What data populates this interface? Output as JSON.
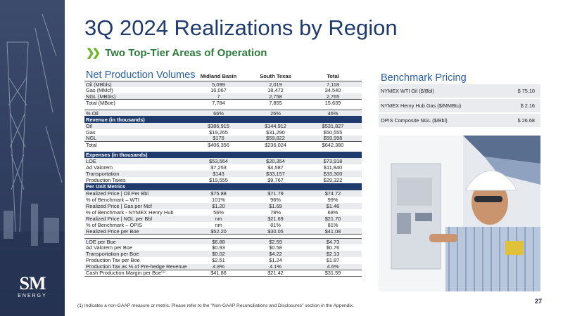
{
  "header": {
    "title": "3Q 2024 Realizations by Region",
    "subtitle": "Two Top-Tier Areas of Operation"
  },
  "logo": {
    "mark": "SM",
    "word": "ENERGY"
  },
  "net_production": {
    "title": "Net Production Volumes",
    "columns": [
      "Midland Basin",
      "South Texas",
      "Total"
    ]
  },
  "rows": {
    "oil_mbbls": [
      "Oil (MBbls)",
      "5,099",
      "2,019",
      "7,118"
    ],
    "gas_mmcf": [
      "Gas (MMcf)",
      "16,067",
      "18,472",
      "34,540"
    ],
    "ngl_mbbls": [
      "NGL (MBbls)",
      "7",
      "2,758",
      "2,765"
    ],
    "total_mboe": [
      "Total (MBoe)",
      "7,784",
      "7,855",
      "15,639"
    ],
    "pct_oil": [
      "% Oil",
      "66%",
      "26%",
      "46%"
    ],
    "revenue_header": "Revenue (in thousands)",
    "rev_oil": [
      "Oil",
      "$386,915",
      "$144,912",
      "$531,827"
    ],
    "rev_gas": [
      "Gas",
      "$19,265",
      "$31,290",
      "$50,555"
    ],
    "rev_ngl": [
      "NGL",
      "$176",
      "$59,822",
      "$59,998"
    ],
    "rev_total": [
      "Total",
      "$406,356",
      "$236,024",
      "$642,380"
    ],
    "expenses_header": "Expenses (in thousands)",
    "loe": [
      "LOE",
      "$53,564",
      "$20,354",
      "$73,918"
    ],
    "ad_valorem": [
      "Ad Valorem",
      "$7,253",
      "$4,587",
      "$11,840"
    ],
    "transportation": [
      "Transportation",
      "$143",
      "$33,157",
      "$33,300"
    ],
    "production_taxes": [
      "Production Taxes",
      "$19,555",
      "$9,767",
      "$29,322"
    ],
    "per_unit_header": "Per Unit Metrics",
    "price_oil": [
      "Realized Price | Oil Per Bbl",
      "$75.88",
      "$71.79",
      "$74.72"
    ],
    "pct_wti": [
      "% of Benchmark – WTI",
      "101%",
      "96%",
      "99%"
    ],
    "price_gas": [
      "Realized Price | Gas per Mcf",
      "$1.20",
      "$1.69",
      "$1.46"
    ],
    "pct_hh": [
      "% of Benchmark - NYMEX Henry Hub",
      "56%",
      "78%",
      "68%"
    ],
    "price_ngl": [
      "Realized Price | NGL per Bbl",
      "nm",
      "$21.69",
      "$21.70"
    ],
    "pct_opis": [
      "% of Benchmark – OPIS",
      "nm",
      "81%",
      "81%"
    ],
    "price_boe": [
      "Realized Price per Boe",
      "$52.20",
      "$30.05",
      "$41.08"
    ],
    "loe_boe": [
      "LOE per Boe",
      "$6.88",
      "$2.59",
      "$4.73"
    ],
    "adval_boe": [
      "Ad Valorem per Boe",
      "$0.93",
      "$0.58",
      "$0.76"
    ],
    "transp_boe": [
      "Transportation per Boe",
      "$0.02",
      "$4.22",
      "$2.13"
    ],
    "prodtax_boe": [
      "Production Tax per Boe",
      "$2.51",
      "$1.24",
      "$1.87"
    ],
    "prodtax_pct": [
      "Production Tax as % of Pre-hedge Revenue",
      "4.8%",
      "4.1%",
      "4.6%"
    ],
    "cash_margin": [
      "Cash Production Margin per Boe",
      "$41.86",
      "$21.42",
      "$31.59"
    ],
    "cash_margin_sup": "(1)"
  },
  "benchmark": {
    "title": "Benchmark Pricing",
    "items": [
      {
        "label": "NYMEX WTI Oil ($/Bbl)",
        "value": "$ 75.10"
      },
      {
        "label": "NYMEX Henry Hub Gas ($/MMBtu)",
        "value": "$   2.16"
      },
      {
        "label": "OPIS Composite NGL ($/Bbl)",
        "value": "$ 26.68"
      }
    ]
  },
  "footnote": "(1)   Indicates a non-GAAP measure or metric. Please refer to the \"Non-GAAP Reconciliations and Disclosures\" section in the Appendix.",
  "page_number": "27",
  "colors": {
    "navy": "#1f3b6e",
    "green": "#6fb52c",
    "blue": "#2b5fa8",
    "shade": "#e9ebef"
  }
}
